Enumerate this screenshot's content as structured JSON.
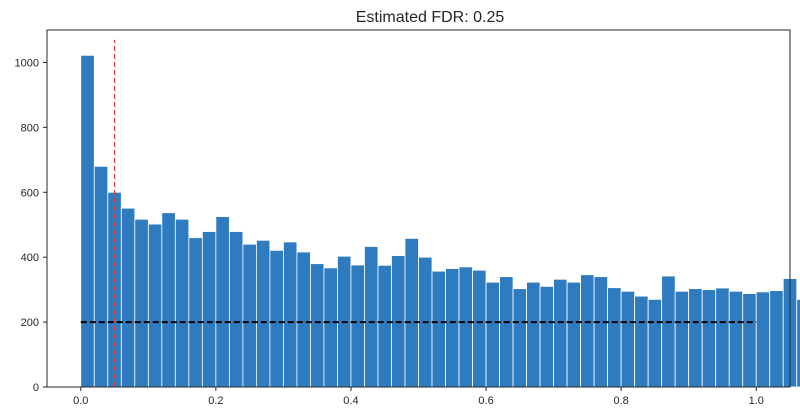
{
  "chart_data": {
    "type": "bar",
    "title": "Estimated FDR: 0.25",
    "xlabel": "",
    "ylabel": "",
    "xlim": [
      -0.05,
      1.05
    ],
    "ylim": [
      0,
      1100
    ],
    "grid": false,
    "bar_color": "#2f7bbf",
    "bin_start": 0.0,
    "bin_width": 0.02,
    "values": [
      1022,
      680,
      600,
      551,
      517,
      502,
      537,
      517,
      460,
      479,
      525,
      479,
      440,
      452,
      421,
      447,
      416,
      380,
      367,
      403,
      376,
      433,
      375,
      405,
      458,
      400,
      357,
      365,
      370,
      360,
      323,
      340,
      303,
      323,
      310,
      332,
      323,
      346,
      340,
      306,
      295,
      280,
      270,
      342,
      295,
      303,
      300,
      305,
      295,
      288,
      293,
      297,
      334,
      270
    ],
    "xticks": [
      {
        "value": 0.0,
        "label": "0.0"
      },
      {
        "value": 0.2,
        "label": "0.2"
      },
      {
        "value": 0.4,
        "label": "0.4"
      },
      {
        "value": 0.6,
        "label": "0.6"
      },
      {
        "value": 0.8,
        "label": "0.8"
      },
      {
        "value": 1.0,
        "label": "1.0"
      }
    ],
    "yticks": [
      {
        "value": 0,
        "label": "0"
      },
      {
        "value": 200,
        "label": "200"
      },
      {
        "value": 400,
        "label": "400"
      },
      {
        "value": 600,
        "label": "600"
      },
      {
        "value": 800,
        "label": "800"
      },
      {
        "value": 1000,
        "label": "1000"
      }
    ],
    "hlines": [
      {
        "y": 200,
        "x_from": 0.0,
        "x_to": 1.0,
        "color": "#000000",
        "style": "dashed"
      }
    ],
    "vlines": [
      {
        "x": 0.05,
        "y_from": 0,
        "y_to": 1070,
        "color": "#e0403a",
        "style": "dashed"
      }
    ]
  }
}
